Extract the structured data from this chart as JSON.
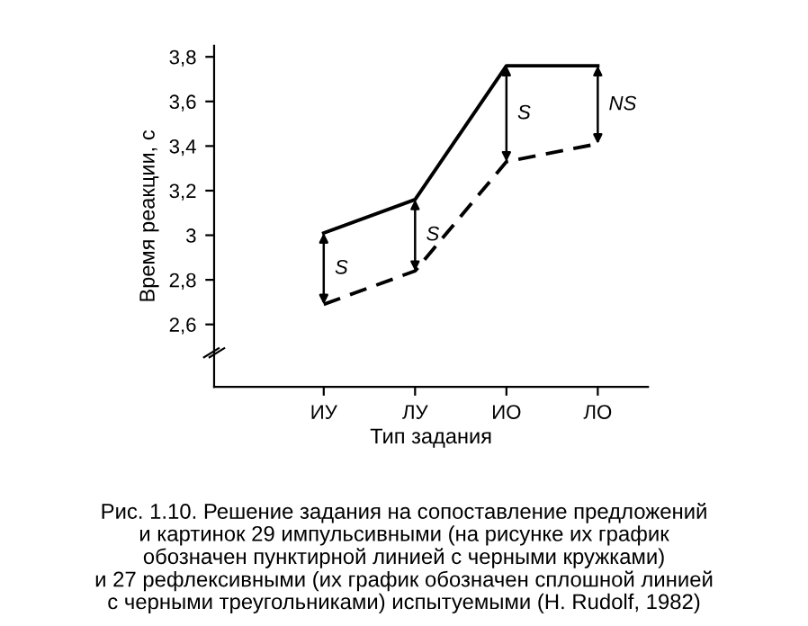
{
  "chart_data": {
    "type": "line",
    "xlabel": "Тип задания",
    "ylabel": "Время реакции, с",
    "categories": [
      "ИУ",
      "ЛУ",
      "ИО",
      "ЛО"
    ],
    "series": [
      {
        "color": "#000000",
        "values": [
          3.01,
          3.16,
          3.76,
          3.76
        ],
        "line_style": "solid"
      },
      {
        "color": "#000000",
        "values": [
          2.69,
          2.84,
          3.33,
          3.41
        ],
        "line_style": "dashed"
      }
    ],
    "ylim": [
      2.32,
      3.85
    ],
    "yticks": [
      {
        "value": 2.6,
        "label": "2,6"
      },
      {
        "value": 2.8,
        "label": "2,8"
      },
      {
        "value": 3,
        "label": "3"
      },
      {
        "value": 3.2,
        "label": "3,2"
      },
      {
        "value": 3.4,
        "label": "3,4"
      },
      {
        "value": 3.6,
        "label": "3,6"
      },
      {
        "value": 3.8,
        "label": "3,8"
      }
    ],
    "grid": false,
    "legend": false,
    "marker": "none",
    "annotations": [
      "S",
      "S",
      "S",
      "NS",
      "Рис. 1.10. Решение задания на сопоставление предложений\nи картинок 29 импульсивными (на рисунке их график\nобозначен пунктирной линией с черными кружками)\nи 27 рефлексивными (их график обозначен сплошной линией\nс черными треугольниками) испытуемыми (H. Rudolf, 1982)"
    ]
  }
}
